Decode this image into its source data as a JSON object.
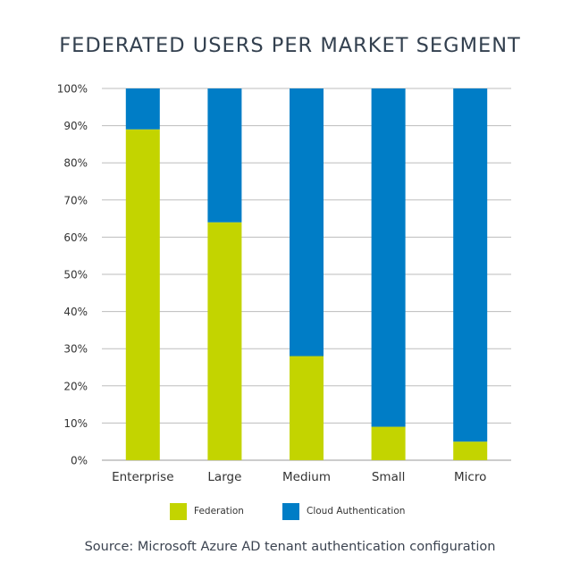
{
  "chart_data": {
    "type": "bar",
    "stacked": true,
    "title": "FEDERATED USERS PER MARKET SEGMENT",
    "categories": [
      "Enterprise",
      "Large",
      "Medium",
      "Small",
      "Micro"
    ],
    "series": [
      {
        "name": "Federation",
        "color": "#c3d400",
        "values": [
          89,
          64,
          28,
          9,
          5
        ]
      },
      {
        "name": "Cloud Authentication",
        "color": "#007dc6",
        "values": [
          11,
          36,
          72,
          91,
          95
        ]
      }
    ],
    "ylim": [
      0,
      100
    ],
    "yticks": [
      "0%",
      "10%",
      "20%",
      "30%",
      "40%",
      "50%",
      "60%",
      "70%",
      "80%",
      "90%",
      "100%"
    ],
    "grid": true,
    "legend_position": "bottom",
    "source": "Source: Microsoft Azure AD tenant authentication configuration"
  }
}
